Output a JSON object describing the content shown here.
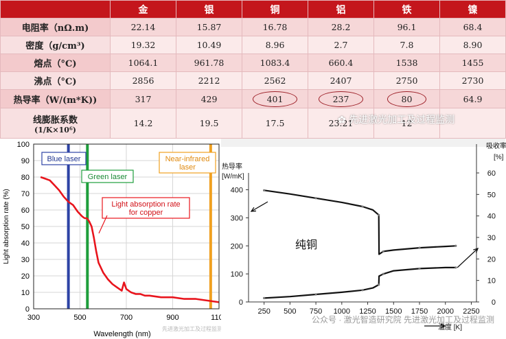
{
  "table": {
    "metals": [
      "金",
      "银",
      "铜",
      "铝",
      "铁",
      "镍"
    ],
    "rows": [
      {
        "label": "电阻率（nΩ.m)",
        "values": [
          "22.14",
          "15.87",
          "16.78",
          "28.2",
          "96.1",
          "68.4"
        ]
      },
      {
        "label": "密度（g/cm³)",
        "values": [
          "19.32",
          "10.49",
          "8.96",
          "2.7",
          "7.8",
          "8.90"
        ]
      },
      {
        "label": "熔点（°C)",
        "values": [
          "1064.1",
          "961.78",
          "1083.4",
          "660.4",
          "1538",
          "1455"
        ]
      },
      {
        "label": "沸点（°C)",
        "values": [
          "2856",
          "2212",
          "2562",
          "2407",
          "2750",
          "2730"
        ]
      },
      {
        "label": "热导率（W/(m*K))",
        "values": [
          "317",
          "429",
          "401",
          "237",
          "80",
          "64.9"
        ]
      },
      {
        "label": "线膨胀系数",
        "label2": "(1/K×10⁶)",
        "values": [
          "14.2",
          "19.5",
          "17.5",
          "23.21",
          "12",
          ""
        ]
      }
    ]
  },
  "watermarks": {
    "table": "先进激光加工及过程监测",
    "left_chart": "先进激光加工及过程监测",
    "right_chart": "公众号 · 激光智造研究院 先进激光加工及过程监测"
  },
  "chart_data": [
    {
      "type": "line",
      "xlabel": "Wavelength (nm)",
      "ylabel": "Light absorption rate (%)",
      "xlim": [
        300,
        1100
      ],
      "ylim": [
        0,
        100
      ],
      "xticks": [
        300,
        500,
        700,
        900,
        1100
      ],
      "yticks": [
        0,
        10,
        20,
        30,
        40,
        50,
        60,
        70,
        80,
        90,
        100
      ],
      "grid": true,
      "series": [
        {
          "name": "Light absorption rate for copper",
          "color": "#e8141c",
          "x": [
            330,
            350,
            370,
            390,
            410,
            430,
            450,
            470,
            490,
            510,
            520,
            530,
            540,
            550,
            560,
            570,
            580,
            600,
            620,
            640,
            660,
            680,
            690,
            700,
            720,
            740,
            760,
            780,
            800,
            850,
            900,
            950,
            1000,
            1050,
            1100
          ],
          "y": [
            80,
            79,
            78,
            75,
            72,
            68,
            65,
            63,
            59,
            56,
            55,
            55,
            53,
            50,
            43,
            35,
            28,
            22,
            18,
            15,
            13,
            11,
            16,
            12,
            10,
            9,
            9,
            8,
            8,
            7,
            7,
            6,
            6,
            5,
            4
          ]
        }
      ],
      "vlines": [
        {
          "label": "Blue laser",
          "x": 450,
          "color": "#2d43a5"
        },
        {
          "label": "Green laser",
          "x": 532,
          "color": "#1e9e3c"
        },
        {
          "label": "Near-infrared laser",
          "x": 1064,
          "color": "#f0a020"
        }
      ]
    },
    {
      "type": "line",
      "title": "纯铜",
      "xlabel": "温度 [K]",
      "ylabel_left": "热导率 [W/mK]",
      "ylabel_right": "吸收率 [%]",
      "xlim": [
        100,
        2300
      ],
      "ylim_left": [
        0,
        460
      ],
      "ylim_right": [
        0,
        60
      ],
      "xticks": [
        250,
        500,
        750,
        1000,
        1250,
        1500,
        1750,
        2000,
        2250
      ],
      "yticks_left": [
        0,
        100,
        200,
        300,
        400
      ],
      "yticks_right": [
        0,
        10,
        20,
        30,
        40,
        50,
        60
      ],
      "series": [
        {
          "name": "热导率",
          "axis": "left",
          "x": [
            250,
            500,
            750,
            1000,
            1200,
            1300,
            1357,
            1360,
            1400,
            1500,
            1750,
            2000,
            2100
          ],
          "y": [
            398,
            385,
            370,
            355,
            340,
            328,
            310,
            170,
            180,
            185,
            193,
            198,
            200
          ]
        },
        {
          "name": "吸收率",
          "axis": "right",
          "x": [
            250,
            500,
            750,
            1000,
            1200,
            1300,
            1357,
            1360,
            1400,
            1500,
            1750,
            2000,
            2100
          ],
          "y": [
            1.8,
            2.5,
            3.5,
            4.5,
            5.5,
            6.5,
            8,
            12,
            13,
            14.5,
            15.5,
            16,
            16
          ]
        }
      ]
    }
  ]
}
